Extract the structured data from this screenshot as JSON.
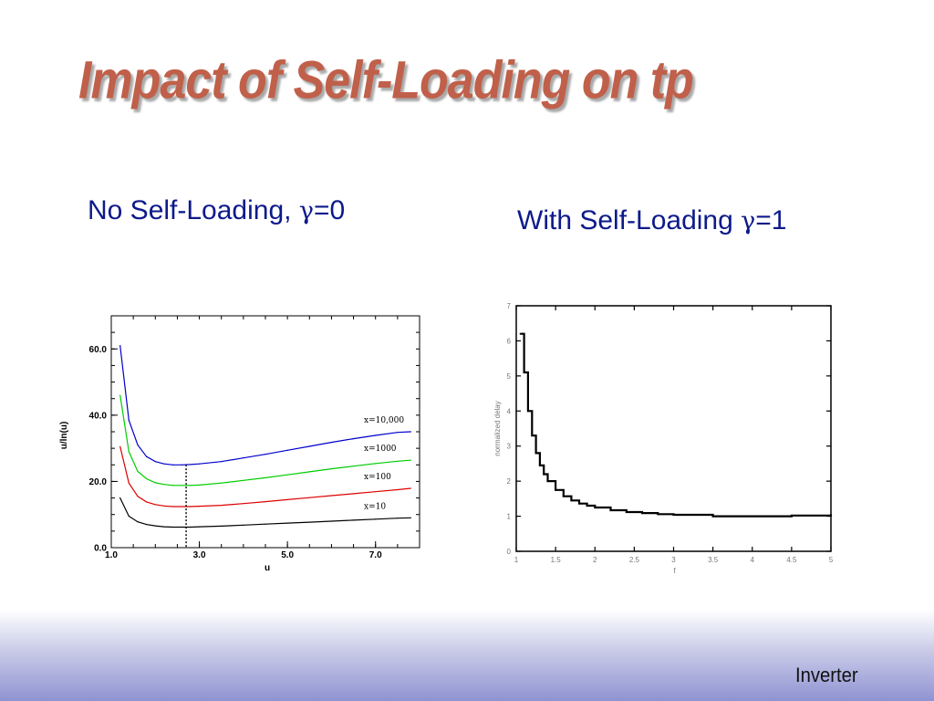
{
  "slide": {
    "title": "Impact of Self-Loading on tp",
    "footer": "Inverter",
    "subtitle_left": {
      "text": "No Self-Loading, ",
      "gamma": "γ",
      "rest": "=0"
    },
    "subtitle_right": {
      "text": "With Self-Loading ",
      "gamma": "γ",
      "rest": "=1"
    }
  },
  "chart_data": [
    {
      "type": "line",
      "xlabel": "u",
      "ylabel": "u/ln(u)",
      "xlim": [
        1.0,
        8.0
      ],
      "ylim": [
        0.0,
        70.0
      ],
      "x_ticks": [
        1.0,
        3.0,
        5.0,
        7.0
      ],
      "x_tick_labels": [
        "1.0",
        "3.0",
        "5.0",
        "7.0"
      ],
      "y_ticks": [
        0.0,
        20.0,
        40.0,
        60.0
      ],
      "y_tick_labels": [
        "0.0",
        "20.0",
        "40.0",
        "60.0"
      ],
      "vertical_marker": {
        "x": 2.7,
        "style": "dotted"
      },
      "x": [
        1.2,
        1.4,
        1.6,
        1.8,
        2.0,
        2.2,
        2.4,
        2.6,
        2.8,
        3.0,
        3.5,
        4.0,
        4.5,
        5.0,
        5.5,
        6.0,
        6.5,
        7.0,
        7.5,
        7.8
      ],
      "series": [
        {
          "name": "x=10",
          "color": "#000000",
          "values": [
            15.0,
            9.5,
            7.8,
            7.0,
            6.6,
            6.3,
            6.2,
            6.2,
            6.2,
            6.3,
            6.5,
            6.8,
            7.1,
            7.4,
            7.7,
            8.0,
            8.3,
            8.6,
            8.9,
            9.0
          ]
        },
        {
          "name": "x=100",
          "color": "#e00000",
          "values": [
            30.5,
            19.5,
            15.5,
            13.8,
            13.0,
            12.6,
            12.4,
            12.4,
            12.4,
            12.5,
            12.8,
            13.3,
            13.9,
            14.5,
            15.1,
            15.7,
            16.3,
            16.9,
            17.5,
            17.9
          ]
        },
        {
          "name": "x=1000",
          "color": "#00cc00",
          "values": [
            46.0,
            29.0,
            23.0,
            20.8,
            19.6,
            19.1,
            18.8,
            18.8,
            18.8,
            18.9,
            19.5,
            20.3,
            21.1,
            22.0,
            22.9,
            23.8,
            24.6,
            25.4,
            26.1,
            26.4
          ]
        },
        {
          "name": "x=10,000",
          "color": "#0000cc",
          "values": [
            61.0,
            38.5,
            31.0,
            27.5,
            26.0,
            25.3,
            25.0,
            25.0,
            25.1,
            25.3,
            26.0,
            27.1,
            28.2,
            29.4,
            30.6,
            31.8,
            32.9,
            33.9,
            34.8,
            35.0
          ]
        }
      ]
    },
    {
      "type": "line",
      "xlabel": "f",
      "ylabel": "normalized delay",
      "xlim": [
        1,
        5
      ],
      "ylim": [
        0,
        7
      ],
      "x_ticks": [
        1,
        1.5,
        2,
        2.5,
        3,
        3.5,
        4,
        4.5,
        5
      ],
      "x_tick_labels": [
        "1",
        "1.5",
        "2",
        "2.5",
        "3",
        "3.5",
        "4",
        "4.5",
        "5"
      ],
      "y_ticks": [
        0,
        1,
        2,
        3,
        4,
        5,
        6,
        7
      ],
      "y_tick_labels": [
        "0",
        "1",
        "2",
        "3",
        "4",
        "5",
        "6",
        "7"
      ],
      "grid": false,
      "series": [
        {
          "color": "#000000",
          "x": [
            1.05,
            1.1,
            1.15,
            1.2,
            1.25,
            1.3,
            1.35,
            1.4,
            1.5,
            1.6,
            1.7,
            1.8,
            1.9,
            2.0,
            2.2,
            2.4,
            2.6,
            2.8,
            3.0,
            3.5,
            4.0,
            4.5,
            5.0
          ],
          "values": [
            6.2,
            5.1,
            4.0,
            3.3,
            2.8,
            2.45,
            2.2,
            2.0,
            1.75,
            1.57,
            1.45,
            1.36,
            1.3,
            1.25,
            1.17,
            1.12,
            1.09,
            1.06,
            1.04,
            1.0,
            1.0,
            1.02,
            1.05
          ]
        }
      ]
    }
  ]
}
